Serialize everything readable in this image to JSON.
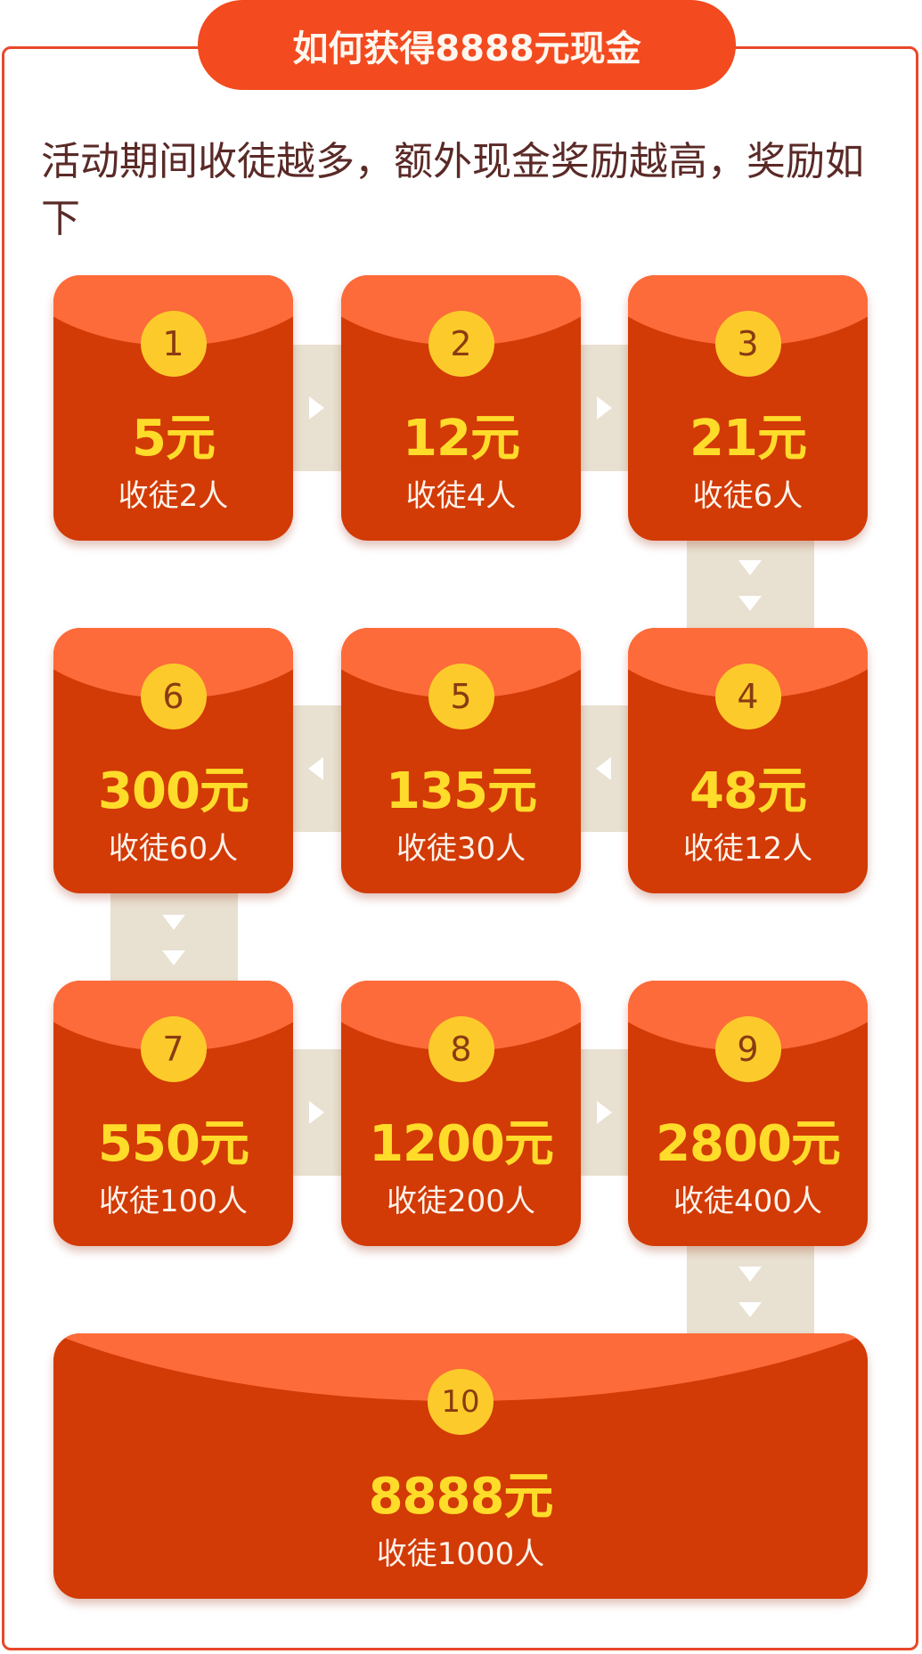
{
  "header": {
    "title": "如何获得8888元现金"
  },
  "intro": "活动期间收徒越多，额外现金奖励越高，奖励如下",
  "rewards": [
    {
      "num": "1",
      "amount": "5元",
      "requirement": "收徒2人"
    },
    {
      "num": "2",
      "amount": "12元",
      "requirement": "收徒4人"
    },
    {
      "num": "3",
      "amount": "21元",
      "requirement": "收徒6人"
    },
    {
      "num": "4",
      "amount": "48元",
      "requirement": "收徒12人"
    },
    {
      "num": "5",
      "amount": "135元",
      "requirement": "收徒30人"
    },
    {
      "num": "6",
      "amount": "300元",
      "requirement": "收徒60人"
    },
    {
      "num": "7",
      "amount": "550元",
      "requirement": "收徒100人"
    },
    {
      "num": "8",
      "amount": "1200元",
      "requirement": "收徒200人"
    },
    {
      "num": "9",
      "amount": "2800元",
      "requirement": "收徒400人"
    },
    {
      "num": "10",
      "amount": "8888元",
      "requirement": "收徒1000人"
    }
  ],
  "colors": {
    "border": "#e8482a",
    "title_bg": "#f34a1f",
    "card_body": "#d23a06",
    "card_flap": "#fd6b3a",
    "badge": "#fccb2b",
    "amount_text": "#ffdc2a",
    "connector": "#e8e0d0"
  }
}
